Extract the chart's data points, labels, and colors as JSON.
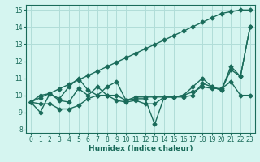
{
  "xlabel": "Humidex (Indice chaleur)",
  "xlim": [
    -0.5,
    23.5
  ],
  "ylim": [
    7.8,
    15.3
  ],
  "yticks": [
    8,
    9,
    10,
    11,
    12,
    13,
    14,
    15
  ],
  "xticks": [
    0,
    1,
    2,
    3,
    4,
    5,
    6,
    7,
    8,
    9,
    10,
    11,
    12,
    13,
    14,
    15,
    16,
    17,
    18,
    19,
    20,
    21,
    22,
    23
  ],
  "bg_color": "#d5f5f0",
  "grid_color": "#b0ddd8",
  "line_color": "#1a6b5a",
  "line_width": 1.0,
  "marker": "D",
  "marker_size": 2.5,
  "series": [
    [
      9.6,
      9.0,
      10.1,
      9.7,
      9.6,
      10.4,
      10.0,
      10.5,
      10.0,
      10.0,
      9.7,
      9.8,
      9.8,
      8.3,
      9.9,
      9.9,
      9.9,
      10.0,
      10.7,
      10.5,
      10.3,
      11.5,
      11.1,
      14.0
    ],
    [
      9.6,
      9.5,
      9.5,
      9.2,
      9.2,
      9.4,
      9.8,
      10.0,
      10.0,
      9.7,
      9.6,
      9.7,
      9.5,
      9.5,
      9.9,
      9.9,
      10.0,
      10.2,
      10.5,
      10.4,
      10.4,
      10.8,
      10.0,
      10.0
    ],
    [
      9.6,
      10.0,
      10.1,
      9.8,
      10.5,
      11.0,
      10.3,
      10.0,
      10.5,
      10.8,
      9.7,
      9.9,
      9.9,
      9.9,
      9.9,
      9.9,
      10.0,
      10.5,
      11.0,
      10.5,
      10.3,
      11.7,
      11.1,
      14.0
    ],
    [
      9.6,
      9.86,
      10.12,
      10.38,
      10.64,
      10.9,
      11.16,
      11.42,
      11.68,
      11.94,
      12.2,
      12.46,
      12.72,
      12.98,
      13.24,
      13.5,
      13.76,
      14.02,
      14.28,
      14.54,
      14.8,
      14.9,
      15.0,
      15.0
    ]
  ]
}
